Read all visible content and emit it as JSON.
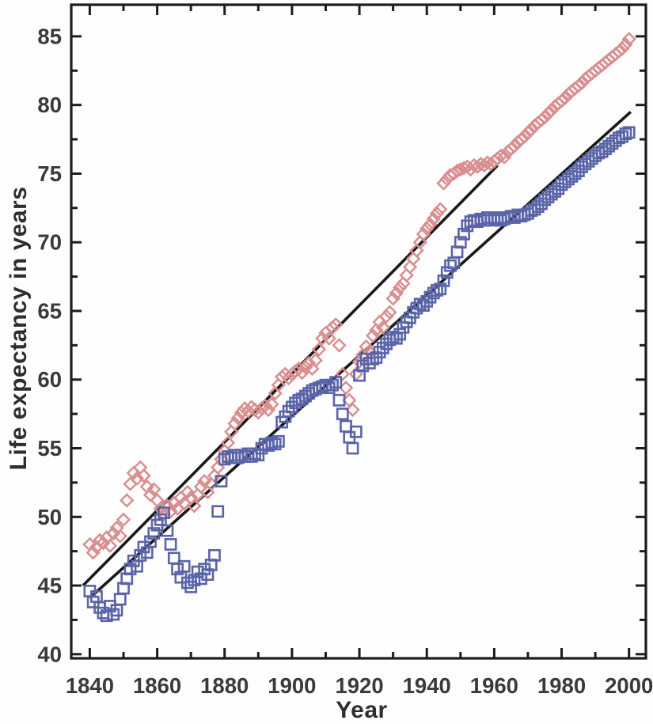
{
  "figure": {
    "title": "",
    "x_axis_title": "Year",
    "y_axis_title": "Life expectancy in years"
  },
  "colors": {
    "axis": "#1c1c1c",
    "tick_label": "#3a3a3a",
    "trend_line": "#1a1a1a",
    "red_series": "#d98e90",
    "blue_series": "#5a64a8"
  },
  "chart_data": {
    "type": "scatter",
    "title": "",
    "xlabel": "Year",
    "ylabel": "Life expectancy in years",
    "xlim": [
      1834.5,
      2005
    ],
    "ylim": [
      39.7,
      87.3
    ],
    "grid": false,
    "legend_position": "none",
    "x_tick_labels": [
      1840,
      1860,
      1880,
      1900,
      1920,
      1940,
      1960,
      1980,
      2000
    ],
    "x_minor_ticks": [
      1850,
      1870,
      1890,
      1910,
      1930,
      1950,
      1970,
      1990
    ],
    "y_tick_labels": [
      40,
      45,
      50,
      55,
      60,
      65,
      70,
      75,
      80,
      85
    ],
    "y_minor_ticks": [
      42.5,
      47.5,
      52.5,
      57.5,
      62.5,
      67.5,
      72.5,
      77.5,
      82.5
    ],
    "series": [
      {
        "id": "red-diamond-series",
        "marker": "diamond",
        "color": "#d98e90",
        "x_start": 1840,
        "x_step": 1,
        "values": [
          48.0,
          47.4,
          47.8,
          48.3,
          48.1,
          48.5,
          47.9,
          48.8,
          49.2,
          48.6,
          49.8,
          51.2,
          52.4,
          53.2,
          52.8,
          53.6,
          53.0,
          52.2,
          51.6,
          52.0,
          51.2,
          50.6,
          50.2,
          50.8,
          50.4,
          51.0,
          50.6,
          51.4,
          51.0,
          51.8,
          51.4,
          50.8,
          51.6,
          52.2,
          52.6,
          51.8,
          52.4,
          53.0,
          53.6,
          54.2,
          54.8,
          55.4,
          56.2,
          56.8,
          57.2,
          57.6,
          57.9,
          57.7,
          58.0,
          57.8,
          57.6,
          57.9,
          58.1,
          57.8,
          58.2,
          59.0,
          59.6,
          60.2,
          60.4,
          60.1,
          60.4,
          60.6,
          60.8,
          60.5,
          60.9,
          61.2,
          60.8,
          61.4,
          62.2,
          63.0,
          63.4,
          63.0,
          63.8,
          64.0,
          62.5,
          60.4,
          59.4,
          58.5,
          57.8,
          60.4,
          61.3,
          61.8,
          62.4,
          62.0,
          63.2,
          63.6,
          64.2,
          63.8,
          64.6,
          64.9,
          65.9,
          66.3,
          66.7,
          67.0,
          67.6,
          68.2,
          68.8,
          69.4,
          70.0,
          70.6,
          71.0,
          71.3,
          71.7,
          72.1,
          72.4,
          74.3,
          74.6,
          74.9,
          75.0,
          75.2,
          75.3,
          75.4,
          75.5,
          75.3,
          75.6,
          75.5,
          75.7,
          75.6,
          75.8,
          75.7,
          75.9,
          76.1,
          76.3,
          76.2,
          76.6,
          76.8,
          77.0,
          77.3,
          77.5,
          77.7,
          78.0,
          78.2,
          78.5,
          78.7,
          78.9,
          79.1,
          79.4,
          79.6,
          79.9,
          80.1,
          80.3,
          80.5,
          80.8,
          81.0,
          81.2,
          81.4,
          81.6,
          81.9,
          82.1,
          82.3,
          82.5,
          82.7,
          82.9,
          83.1,
          83.3,
          83.5,
          83.7,
          83.9,
          84.1,
          84.4,
          84.8
        ]
      },
      {
        "id": "blue-square-series",
        "marker": "square",
        "color": "#5a64a8",
        "x_start": 1840,
        "x_step": 1,
        "values": [
          44.6,
          43.8,
          44.2,
          43.4,
          43.0,
          42.8,
          43.5,
          42.9,
          43.2,
          44.0,
          44.8,
          45.5,
          46.2,
          46.8,
          46.4,
          47.2,
          47.8,
          47.4,
          48.2,
          48.8,
          49.4,
          49.8,
          50.3,
          49.0,
          48.0,
          47.0,
          46.2,
          45.6,
          46.4,
          45.2,
          44.9,
          45.4,
          46.0,
          45.5,
          46.2,
          45.8,
          46.5,
          47.2,
          50.4,
          52.6,
          54.2,
          54.4,
          54.3,
          54.5,
          54.3,
          54.5,
          54.4,
          54.6,
          54.4,
          54.6,
          54.5,
          55.0,
          55.3,
          55.2,
          55.4,
          55.3,
          55.5,
          56.9,
          57.3,
          57.7,
          58.0,
          58.3,
          58.5,
          58.6,
          58.8,
          59.0,
          59.2,
          59.3,
          59.4,
          59.5,
          59.6,
          59.4,
          59.6,
          59.8,
          58.5,
          57.5,
          56.6,
          55.8,
          55.0,
          56.2,
          60.3,
          61.0,
          61.5,
          61.2,
          61.5,
          61.6,
          62.0,
          62.3,
          62.6,
          62.9,
          63.1,
          63.0,
          63.3,
          63.8,
          64.2,
          64.5,
          64.9,
          65.2,
          65.5,
          65.4,
          65.7,
          66.0,
          66.3,
          66.5,
          66.6,
          67.2,
          67.8,
          68.3,
          68.5,
          69.3,
          70.0,
          70.6,
          71.2,
          71.5,
          71.6,
          71.5,
          71.7,
          71.6,
          71.8,
          71.6,
          71.7,
          71.8,
          71.6,
          71.7,
          71.8,
          71.9,
          71.8,
          72.0,
          71.9,
          72.0,
          72.1,
          72.3,
          72.4,
          72.6,
          72.8,
          73.1,
          73.3,
          73.5,
          73.7,
          73.9,
          74.2,
          74.4,
          74.6,
          74.8,
          75.0,
          75.2,
          75.5,
          75.7,
          75.9,
          76.1,
          76.3,
          76.5,
          76.6,
          76.8,
          77.0,
          77.2,
          77.4,
          77.6,
          77.7,
          77.9,
          78.0
        ]
      }
    ],
    "trend_lines": [
      {
        "id": "red-series-trend",
        "x1": 1838,
        "y1": 45.0,
        "x2": 1961,
        "y2": 75.6
      },
      {
        "id": "blue-series-trend",
        "x1": 1840,
        "y1": 44.1,
        "x2": 2000.5,
        "y2": 79.5
      }
    ]
  }
}
